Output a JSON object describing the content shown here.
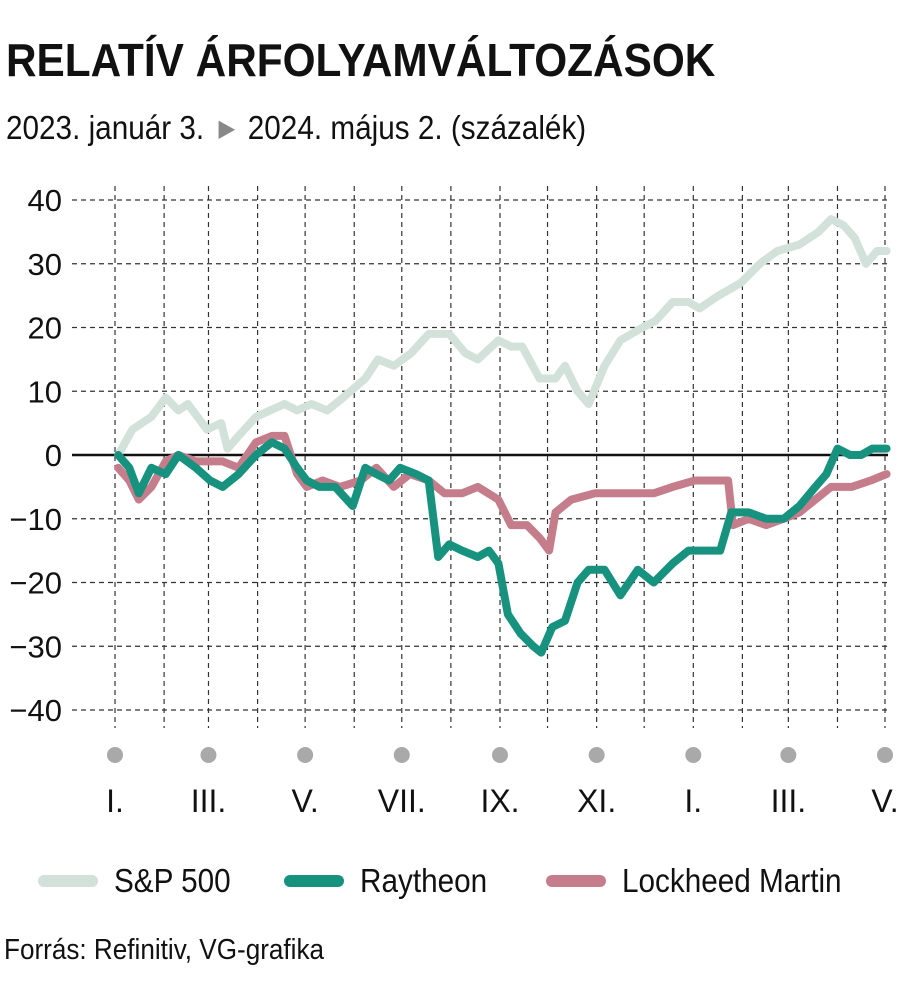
{
  "title": "RELATÍV ÁRFOLYAMVÁLTOZÁSOK",
  "subtitle": {
    "start": "2023. január 3.",
    "arrow": "▶",
    "end": "2024. május 2. (százalék)"
  },
  "source": "Forrás: Refinitiv, VG-grafika",
  "colors": {
    "sp500": "#d2e2da",
    "raytheon": "#16927e",
    "lockheed": "#c57d8b",
    "grid": "#333333",
    "zero_line": "#111111",
    "month_dot": "#a9a9a9"
  },
  "chart_data": {
    "type": "line",
    "title": "RELATÍV ÁRFOLYAMVÁLTOZÁSOK",
    "subtitle": "2023. január 3. ▶ 2024. május 2. (százalék)",
    "ylim": [
      -40,
      40
    ],
    "yticks": [
      40,
      30,
      20,
      10,
      0,
      -10,
      -20,
      -30,
      -40
    ],
    "xlim": [
      "2023-01-03",
      "2024-05-02"
    ],
    "x_tick_labels": [
      {
        "date": "2023-01-01",
        "label": "I."
      },
      {
        "date": "2023-03-01",
        "label": "III."
      },
      {
        "date": "2023-05-01",
        "label": "V."
      },
      {
        "date": "2023-07-01",
        "label": "VII."
      },
      {
        "date": "2023-09-01",
        "label": "IX."
      },
      {
        "date": "2023-11-01",
        "label": "XI."
      },
      {
        "date": "2024-01-01",
        "label": "I."
      },
      {
        "date": "2024-03-01",
        "label": "III."
      },
      {
        "date": "2024-05-01",
        "label": "V."
      }
    ],
    "grid": true,
    "legend": "bottom",
    "series": [
      {
        "name": "S&P 500",
        "color": "#d2e2da",
        "points": [
          [
            "2023-01-03",
            0
          ],
          [
            "2023-01-12",
            4
          ],
          [
            "2023-01-24",
            6
          ],
          [
            "2023-02-02",
            9
          ],
          [
            "2023-02-10",
            7
          ],
          [
            "2023-02-16",
            8
          ],
          [
            "2023-02-28",
            4
          ],
          [
            "2023-03-09",
            5
          ],
          [
            "2023-03-13",
            1
          ],
          [
            "2023-03-20",
            3
          ],
          [
            "2023-03-31",
            6
          ],
          [
            "2023-04-18",
            8
          ],
          [
            "2023-04-26",
            7
          ],
          [
            "2023-05-05",
            8
          ],
          [
            "2023-05-15",
            7
          ],
          [
            "2023-05-25",
            9
          ],
          [
            "2023-06-08",
            12
          ],
          [
            "2023-06-16",
            15
          ],
          [
            "2023-06-26",
            14
          ],
          [
            "2023-07-07",
            16
          ],
          [
            "2023-07-18",
            19
          ],
          [
            "2023-07-31",
            19
          ],
          [
            "2023-08-10",
            16
          ],
          [
            "2023-08-18",
            15
          ],
          [
            "2023-08-31",
            18
          ],
          [
            "2023-09-08",
            17
          ],
          [
            "2023-09-15",
            17
          ],
          [
            "2023-09-26",
            12
          ],
          [
            "2023-10-06",
            12
          ],
          [
            "2023-10-12",
            14
          ],
          [
            "2023-10-20",
            10
          ],
          [
            "2023-10-27",
            8
          ],
          [
            "2023-11-06",
            14
          ],
          [
            "2023-11-16",
            18
          ],
          [
            "2023-11-30",
            20
          ],
          [
            "2023-12-08",
            21
          ],
          [
            "2023-12-19",
            24
          ],
          [
            "2023-12-29",
            24
          ],
          [
            "2024-01-05",
            23
          ],
          [
            "2024-01-17",
            25
          ],
          [
            "2024-01-31",
            27
          ],
          [
            "2024-02-12",
            30
          ],
          [
            "2024-02-23",
            32
          ],
          [
            "2024-03-08",
            33
          ],
          [
            "2024-03-20",
            35
          ],
          [
            "2024-03-28",
            37
          ],
          [
            "2024-04-05",
            36
          ],
          [
            "2024-04-12",
            34
          ],
          [
            "2024-04-19",
            30
          ],
          [
            "2024-04-26",
            32
          ],
          [
            "2024-05-02",
            32
          ]
        ]
      },
      {
        "name": "Raytheon",
        "color": "#16927e",
        "points": [
          [
            "2023-01-03",
            0
          ],
          [
            "2023-01-10",
            -2
          ],
          [
            "2023-01-16",
            -6
          ],
          [
            "2023-01-24",
            -2
          ],
          [
            "2023-02-02",
            -3
          ],
          [
            "2023-02-10",
            0
          ],
          [
            "2023-02-21",
            -2
          ],
          [
            "2023-03-02",
            -4
          ],
          [
            "2023-03-10",
            -5
          ],
          [
            "2023-03-20",
            -3
          ],
          [
            "2023-03-31",
            0
          ],
          [
            "2023-04-10",
            2
          ],
          [
            "2023-04-18",
            1
          ],
          [
            "2023-04-26",
            -2
          ],
          [
            "2023-05-02",
            -4
          ],
          [
            "2023-05-10",
            -5
          ],
          [
            "2023-05-20",
            -5
          ],
          [
            "2023-05-31",
            -8
          ],
          [
            "2023-06-08",
            -2
          ],
          [
            "2023-06-15",
            -3
          ],
          [
            "2023-06-23",
            -4
          ],
          [
            "2023-06-30",
            -2
          ],
          [
            "2023-07-10",
            -3
          ],
          [
            "2023-07-18",
            -4
          ],
          [
            "2023-07-24",
            -16
          ],
          [
            "2023-07-31",
            -14
          ],
          [
            "2023-08-08",
            -15
          ],
          [
            "2023-08-18",
            -16
          ],
          [
            "2023-08-25",
            -15
          ],
          [
            "2023-08-31",
            -17
          ],
          [
            "2023-09-06",
            -25
          ],
          [
            "2023-09-14",
            -28
          ],
          [
            "2023-09-22",
            -30
          ],
          [
            "2023-09-27",
            -31
          ],
          [
            "2023-10-04",
            -27
          ],
          [
            "2023-10-12",
            -26
          ],
          [
            "2023-10-20",
            -20
          ],
          [
            "2023-10-27",
            -18
          ],
          [
            "2023-11-06",
            -18
          ],
          [
            "2023-11-16",
            -22
          ],
          [
            "2023-11-27",
            -18
          ],
          [
            "2023-12-07",
            -20
          ],
          [
            "2023-12-19",
            -17
          ],
          [
            "2023-12-29",
            -15
          ],
          [
            "2024-01-08",
            -15
          ],
          [
            "2024-01-18",
            -15
          ],
          [
            "2024-01-25",
            -9
          ],
          [
            "2024-02-05",
            -9
          ],
          [
            "2024-02-16",
            -10
          ],
          [
            "2024-02-27",
            -10
          ],
          [
            "2024-03-08",
            -8
          ],
          [
            "2024-03-18",
            -5
          ],
          [
            "2024-03-25",
            -3
          ],
          [
            "2024-04-01",
            1
          ],
          [
            "2024-04-09",
            0
          ],
          [
            "2024-04-16",
            0
          ],
          [
            "2024-04-23",
            1
          ],
          [
            "2024-05-02",
            1
          ]
        ]
      },
      {
        "name": "Lockheed Martin",
        "color": "#c57d8b",
        "points": [
          [
            "2023-01-03",
            -2
          ],
          [
            "2023-01-10",
            -4
          ],
          [
            "2023-01-16",
            -7
          ],
          [
            "2023-01-24",
            -5
          ],
          [
            "2023-02-02",
            -1
          ],
          [
            "2023-02-10",
            0
          ],
          [
            "2023-02-21",
            -1
          ],
          [
            "2023-03-02",
            -1
          ],
          [
            "2023-03-10",
            -1
          ],
          [
            "2023-03-20",
            -2
          ],
          [
            "2023-03-31",
            2
          ],
          [
            "2023-04-10",
            3
          ],
          [
            "2023-04-18",
            3
          ],
          [
            "2023-04-26",
            -3
          ],
          [
            "2023-05-02",
            -5
          ],
          [
            "2023-05-12",
            -4
          ],
          [
            "2023-05-23",
            -5
          ],
          [
            "2023-06-05",
            -4
          ],
          [
            "2023-06-15",
            -2
          ],
          [
            "2023-06-26",
            -5
          ],
          [
            "2023-07-06",
            -3
          ],
          [
            "2023-07-18",
            -4
          ],
          [
            "2023-07-28",
            -6
          ],
          [
            "2023-08-08",
            -6
          ],
          [
            "2023-08-18",
            -5
          ],
          [
            "2023-08-31",
            -7
          ],
          [
            "2023-09-08",
            -11
          ],
          [
            "2023-09-18",
            -11
          ],
          [
            "2023-09-26",
            -13
          ],
          [
            "2023-10-02",
            -15
          ],
          [
            "2023-10-06",
            -9
          ],
          [
            "2023-10-16",
            -7
          ],
          [
            "2023-10-31",
            -6
          ],
          [
            "2023-11-10",
            -6
          ],
          [
            "2023-11-24",
            -6
          ],
          [
            "2023-12-07",
            -6
          ],
          [
            "2023-12-19",
            -5
          ],
          [
            "2024-01-02",
            -4
          ],
          [
            "2024-01-08",
            -4
          ],
          [
            "2024-01-23",
            -4
          ],
          [
            "2024-01-26",
            -11
          ],
          [
            "2024-02-05",
            -10
          ],
          [
            "2024-02-16",
            -11
          ],
          [
            "2024-02-27",
            -10
          ],
          [
            "2024-03-08",
            -9
          ],
          [
            "2024-03-18",
            -7
          ],
          [
            "2024-03-28",
            -5
          ],
          [
            "2024-04-10",
            -5
          ],
          [
            "2024-04-22",
            -4
          ],
          [
            "2024-05-02",
            -3
          ]
        ]
      }
    ]
  }
}
